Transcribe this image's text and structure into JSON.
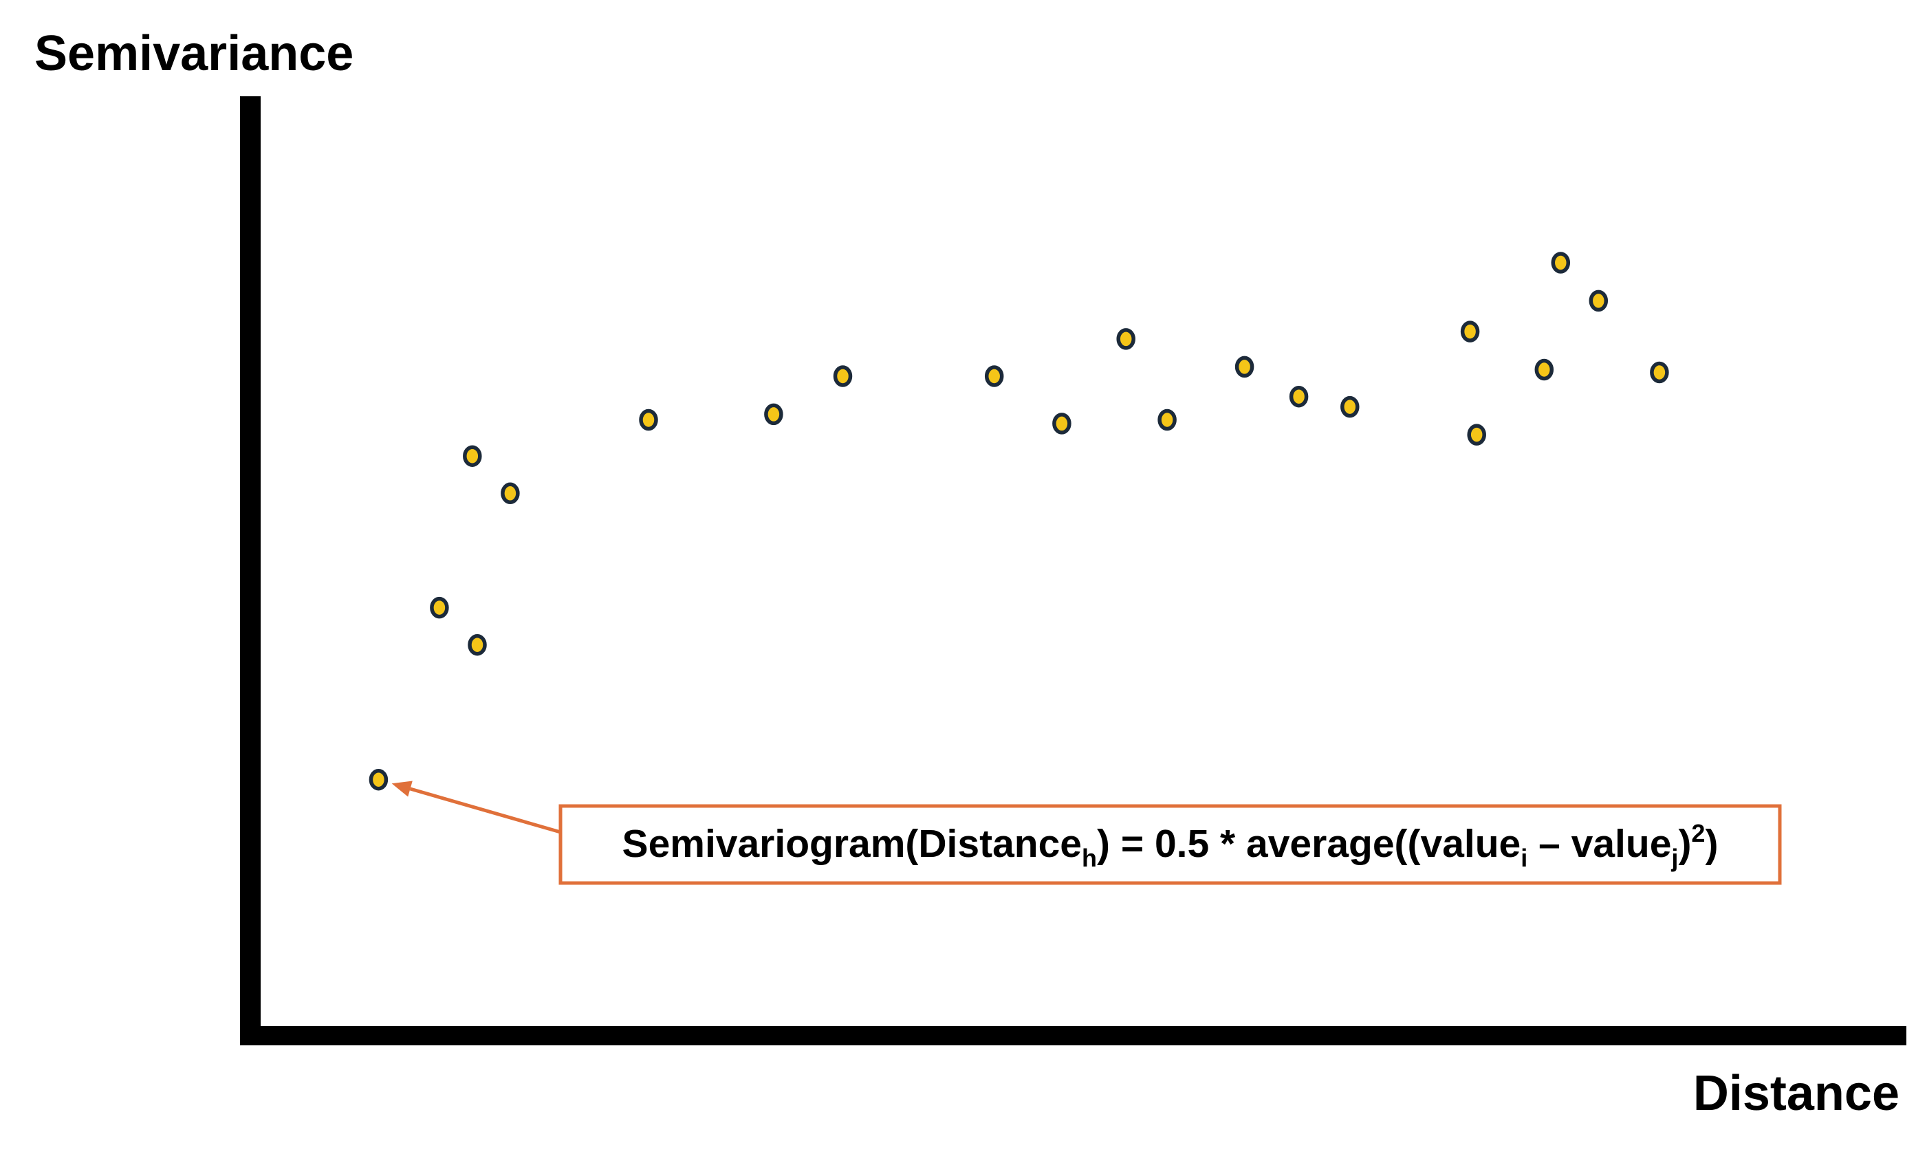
{
  "colors": {
    "axis": "#000000",
    "point_fill": "#f5c518",
    "point_stroke": "#1c2a3a",
    "annotation": "#e0703a"
  },
  "chart_data": {
    "type": "scatter",
    "title": "",
    "xlabel": "Distance",
    "ylabel": "Semivariance",
    "xlim": [
      0,
      100
    ],
    "ylim": [
      0,
      100
    ],
    "grid": false,
    "tick_labels": false,
    "points": [
      {
        "x": 7.2,
        "y": 26.5
      },
      {
        "x": 10.9,
        "y": 45.0
      },
      {
        "x": 13.2,
        "y": 41.0
      },
      {
        "x": 12.9,
        "y": 61.3
      },
      {
        "x": 15.2,
        "y": 57.3
      },
      {
        "x": 23.6,
        "y": 65.2
      },
      {
        "x": 31.2,
        "y": 65.8
      },
      {
        "x": 35.4,
        "y": 69.9
      },
      {
        "x": 44.6,
        "y": 69.9
      },
      {
        "x": 48.7,
        "y": 64.8
      },
      {
        "x": 52.6,
        "y": 73.9
      },
      {
        "x": 55.1,
        "y": 65.2
      },
      {
        "x": 59.8,
        "y": 70.9
      },
      {
        "x": 63.1,
        "y": 67.7
      },
      {
        "x": 66.2,
        "y": 66.6
      },
      {
        "x": 73.5,
        "y": 74.7
      },
      {
        "x": 73.9,
        "y": 63.6
      },
      {
        "x": 78.0,
        "y": 70.6
      },
      {
        "x": 79.0,
        "y": 82.1
      },
      {
        "x": 81.3,
        "y": 78.0
      },
      {
        "x": 85.0,
        "y": 70.3
      }
    ],
    "annotations": [
      {
        "target_point_index": 0,
        "text_parts": [
          {
            "t": "Semivariogram(Distance",
            "style": "normal"
          },
          {
            "t": "h",
            "style": "sub"
          },
          {
            "t": ") = 0.5 * average((value",
            "style": "normal"
          },
          {
            "t": "i",
            "style": "sub"
          },
          {
            "t": " – value",
            "style": "normal"
          },
          {
            "t": "j",
            "style": "sub"
          },
          {
            "t": ")",
            "style": "normal"
          },
          {
            "t": "2",
            "style": "sup"
          },
          {
            "t": ")",
            "style": "normal"
          }
        ]
      }
    ]
  }
}
